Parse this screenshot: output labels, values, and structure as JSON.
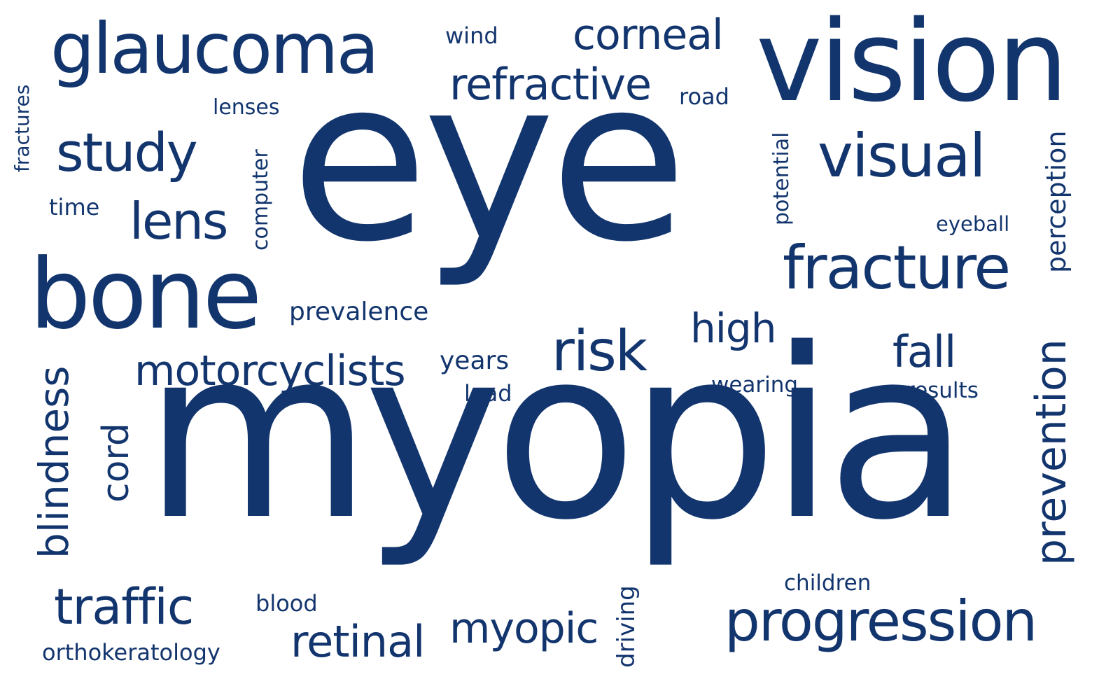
{
  "cloud": {
    "color": "#13356e",
    "background": "#ffffff",
    "words": {
      "eye": "eye",
      "myopia": "myopia",
      "vision": "vision",
      "glaucoma": "glaucoma",
      "bone": "bone",
      "fracture": "fracture",
      "visual": "visual",
      "progression": "progression",
      "corneal": "corneal",
      "refractive": "refractive",
      "study": "study",
      "lens": "lens",
      "risk": "risk",
      "motorcyclists": "motorcyclists",
      "traffic": "traffic",
      "retinal": "retinal",
      "myopic": "myopic",
      "high": "high",
      "fall": "fall",
      "prevention": "prevention",
      "blindness": "blindness",
      "cord": "cord",
      "prevalence": "prevalence",
      "years": "years",
      "lead": "lead",
      "wearing": "wearing",
      "results": "results",
      "children": "children",
      "eyeball": "eyeball",
      "perception": "perception",
      "potential": "potential",
      "computer": "computer",
      "time": "time",
      "lenses": "lenses",
      "wind": "wind",
      "road": "road",
      "fractures": "fractures",
      "blood": "blood",
      "orthokeratology": "orthokeratology",
      "driving": "driving"
    }
  }
}
